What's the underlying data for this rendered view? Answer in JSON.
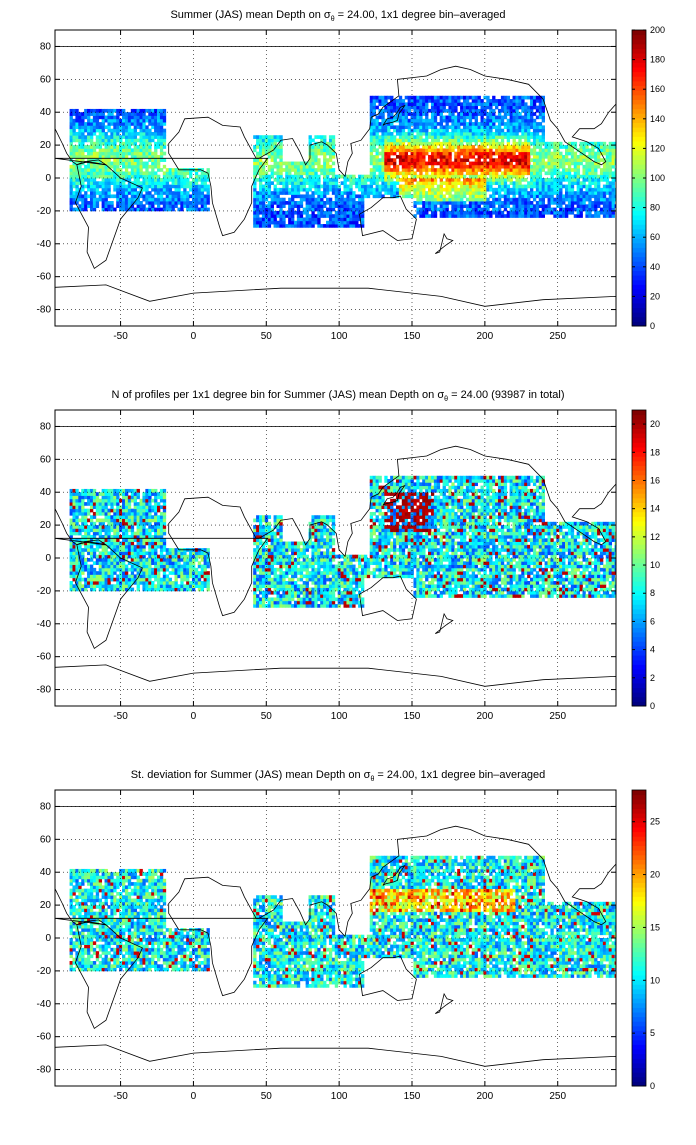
{
  "panels": [
    {
      "title_prefix": "Summer (JAS) mean Depth on σ",
      "title_sub": "θ",
      "title_suffix": " = 24.00, 1x1 degree bin–averaged",
      "colorbar": {
        "min": 0,
        "max": 200,
        "ticks": [
          0,
          20,
          40,
          60,
          80,
          100,
          120,
          140,
          160,
          180,
          200
        ]
      }
    },
    {
      "title_prefix": "N of profiles per 1x1 degree bin for Summer (JAS) mean Depth on σ",
      "title_sub": "θ",
      "title_suffix": " = 24.00 (93987 in total)",
      "colorbar": {
        "min": 0,
        "max": 21,
        "ticks": [
          0,
          2,
          4,
          6,
          8,
          10,
          12,
          14,
          16,
          18,
          20
        ]
      }
    },
    {
      "title_prefix": "St. deviation for Summer (JAS) mean Depth on σ",
      "title_sub": "θ",
      "title_suffix": " = 24.00, 1x1 degree bin–averaged",
      "colorbar": {
        "min": 0,
        "max": 28,
        "ticks": [
          0,
          5,
          10,
          15,
          20,
          25
        ]
      }
    }
  ],
  "axes": {
    "xlim": [
      -95,
      290
    ],
    "ylim": [
      -90,
      90
    ],
    "xticks": [
      -50,
      0,
      50,
      100,
      150,
      200,
      250
    ],
    "yticks": [
      80,
      60,
      40,
      20,
      0,
      -20,
      -40,
      -60,
      -80
    ]
  },
  "colormap": "jet",
  "grid": "dotted"
}
